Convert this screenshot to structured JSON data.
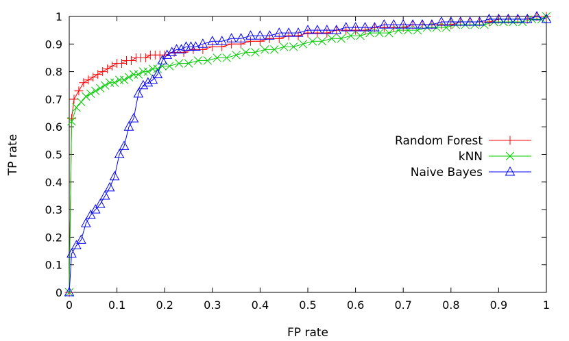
{
  "chart_data": {
    "type": "line",
    "title": "",
    "xlabel": "FP rate",
    "ylabel": "TP rate",
    "xlim": [
      0,
      1
    ],
    "ylim": [
      0,
      1
    ],
    "xticks": [
      "0",
      "0.1",
      "0.2",
      "0.3",
      "0.4",
      "0.5",
      "0.6",
      "0.7",
      "0.8",
      "0.9",
      "1"
    ],
    "yticks": [
      "0",
      "0.1",
      "0.2",
      "0.3",
      "0.4",
      "0.5",
      "0.6",
      "0.7",
      "0.8",
      "0.9",
      "1"
    ],
    "grid": false,
    "legend_position": "right",
    "series": [
      {
        "name": "Random Forest",
        "color": "#ff0000",
        "marker": "plus",
        "x": [
          0,
          0.005,
          0.01,
          0.02,
          0.03,
          0.04,
          0.05,
          0.06,
          0.07,
          0.08,
          0.09,
          0.1,
          0.11,
          0.12,
          0.13,
          0.14,
          0.15,
          0.16,
          0.17,
          0.18,
          0.19,
          0.2,
          0.22,
          0.24,
          0.26,
          0.28,
          0.3,
          0.32,
          0.34,
          0.36,
          0.38,
          0.4,
          0.42,
          0.44,
          0.46,
          0.48,
          0.5,
          0.52,
          0.54,
          0.56,
          0.58,
          0.6,
          0.62,
          0.64,
          0.66,
          0.68,
          0.7,
          0.72,
          0.74,
          0.76,
          0.78,
          0.8,
          0.82,
          0.84,
          0.86,
          0.88,
          0.9,
          0.92,
          0.94,
          0.96,
          0.98,
          1
        ],
        "y": [
          0,
          0.63,
          0.7,
          0.73,
          0.76,
          0.77,
          0.78,
          0.79,
          0.8,
          0.81,
          0.82,
          0.83,
          0.83,
          0.84,
          0.84,
          0.85,
          0.85,
          0.85,
          0.86,
          0.86,
          0.86,
          0.86,
          0.87,
          0.87,
          0.88,
          0.88,
          0.89,
          0.89,
          0.9,
          0.9,
          0.91,
          0.91,
          0.92,
          0.92,
          0.93,
          0.93,
          0.94,
          0.94,
          0.94,
          0.95,
          0.95,
          0.95,
          0.95,
          0.96,
          0.96,
          0.96,
          0.96,
          0.97,
          0.97,
          0.97,
          0.97,
          0.97,
          0.98,
          0.98,
          0.98,
          0.98,
          0.99,
          0.99,
          0.99,
          0.99,
          1.0,
          1.0
        ]
      },
      {
        "name": "kNN",
        "color": "#00cc00",
        "marker": "x",
        "x": [
          0,
          0.005,
          0.015,
          0.025,
          0.035,
          0.045,
          0.055,
          0.065,
          0.075,
          0.085,
          0.095,
          0.105,
          0.115,
          0.125,
          0.135,
          0.145,
          0.155,
          0.165,
          0.175,
          0.185,
          0.195,
          0.21,
          0.23,
          0.25,
          0.27,
          0.29,
          0.31,
          0.33,
          0.35,
          0.37,
          0.39,
          0.41,
          0.43,
          0.45,
          0.47,
          0.49,
          0.51,
          0.53,
          0.55,
          0.57,
          0.59,
          0.61,
          0.63,
          0.65,
          0.67,
          0.69,
          0.71,
          0.73,
          0.75,
          0.77,
          0.79,
          0.81,
          0.83,
          0.85,
          0.87,
          0.89,
          0.91,
          0.93,
          0.95,
          0.97,
          0.99,
          1
        ],
        "y": [
          0,
          0.62,
          0.67,
          0.69,
          0.71,
          0.72,
          0.73,
          0.74,
          0.75,
          0.76,
          0.76,
          0.77,
          0.77,
          0.78,
          0.79,
          0.79,
          0.8,
          0.8,
          0.81,
          0.81,
          0.82,
          0.82,
          0.83,
          0.83,
          0.84,
          0.84,
          0.85,
          0.85,
          0.86,
          0.87,
          0.87,
          0.88,
          0.88,
          0.89,
          0.89,
          0.9,
          0.91,
          0.91,
          0.92,
          0.92,
          0.93,
          0.93,
          0.94,
          0.94,
          0.94,
          0.95,
          0.95,
          0.95,
          0.96,
          0.96,
          0.96,
          0.97,
          0.97,
          0.97,
          0.97,
          0.98,
          0.98,
          0.98,
          0.98,
          0.99,
          0.99,
          1.0
        ]
      },
      {
        "name": "Naive Bayes",
        "color": "#0000ff",
        "marker": "triangle",
        "x": [
          0,
          0.005,
          0.015,
          0.025,
          0.035,
          0.045,
          0.055,
          0.065,
          0.075,
          0.085,
          0.095,
          0.105,
          0.115,
          0.125,
          0.135,
          0.145,
          0.155,
          0.165,
          0.175,
          0.185,
          0.195,
          0.205,
          0.215,
          0.225,
          0.235,
          0.245,
          0.255,
          0.265,
          0.28,
          0.3,
          0.32,
          0.34,
          0.36,
          0.38,
          0.4,
          0.42,
          0.44,
          0.46,
          0.48,
          0.5,
          0.52,
          0.54,
          0.56,
          0.58,
          0.6,
          0.62,
          0.64,
          0.66,
          0.68,
          0.7,
          0.72,
          0.74,
          0.76,
          0.78,
          0.8,
          0.82,
          0.84,
          0.86,
          0.88,
          0.9,
          0.92,
          0.94,
          0.96,
          0.98,
          1
        ],
        "y": [
          0,
          0.14,
          0.17,
          0.19,
          0.25,
          0.28,
          0.3,
          0.32,
          0.35,
          0.38,
          0.42,
          0.5,
          0.53,
          0.6,
          0.63,
          0.72,
          0.75,
          0.76,
          0.77,
          0.79,
          0.84,
          0.86,
          0.87,
          0.88,
          0.88,
          0.89,
          0.89,
          0.89,
          0.9,
          0.91,
          0.91,
          0.92,
          0.92,
          0.93,
          0.93,
          0.93,
          0.94,
          0.94,
          0.94,
          0.95,
          0.95,
          0.95,
          0.95,
          0.96,
          0.96,
          0.96,
          0.96,
          0.97,
          0.97,
          0.97,
          0.97,
          0.97,
          0.97,
          0.98,
          0.98,
          0.98,
          0.98,
          0.98,
          0.99,
          0.99,
          0.99,
          0.99,
          0.99,
          1.0,
          0.99
        ]
      }
    ]
  }
}
